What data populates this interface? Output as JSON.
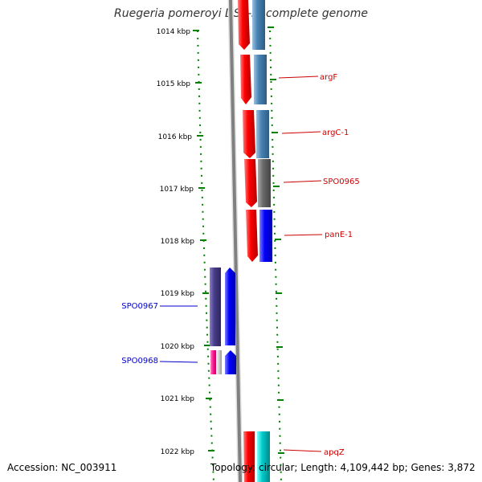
{
  "title": "Ruegeria pomeroyi DSS-3, complete genome",
  "accession": "Accession: NC_003911",
  "summary": "Topology: circular; Length: 4,109,442 bp; Genes: 3,872",
  "ticks": [
    "1014 kbp",
    "1015 kbp",
    "1016 kbp",
    "1017 kbp",
    "1018 kbp",
    "1019 kbp",
    "1020 kbp",
    "1021 kbp",
    "1022 kbp"
  ],
  "gene_labels": {
    "forward": [
      "argF",
      "argC-1",
      "SPO0965",
      "panE-1",
      "apqZ"
    ],
    "reverse": [
      "SPO0967",
      "SPO0968"
    ]
  },
  "colors": {
    "forward_label": "#cc0000",
    "reverse_label": "#0000cc",
    "tick": "#008000",
    "backbone": "#808080",
    "cds_red": "#ff0000",
    "steelblue": "#4682b4",
    "gray": "#696969",
    "blue": "#0000ff",
    "darkslateblue": "#483d8b",
    "magenta": "#ff1493",
    "cyan": "#00cccc"
  }
}
